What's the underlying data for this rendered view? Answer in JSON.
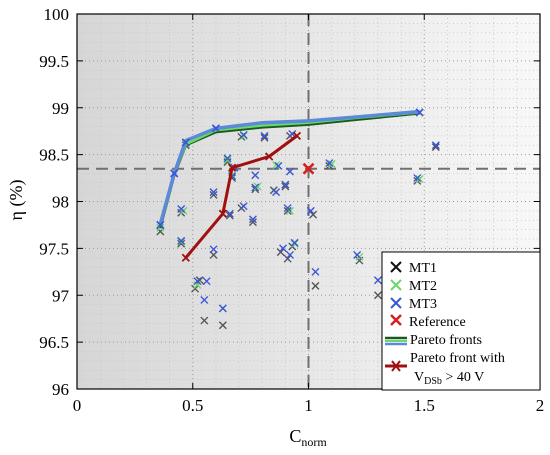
{
  "chart_data": {
    "type": "scatter",
    "xlabel": {
      "main": "C",
      "sub": "norm"
    },
    "ylabel": "η (%)",
    "xlim": [
      0,
      2
    ],
    "ylim": [
      96,
      100
    ],
    "xticks": [
      "0",
      "0.5",
      "1",
      "1.5",
      "2"
    ],
    "yticks": [
      "96",
      "96.5",
      "97",
      "97.5",
      "98",
      "98.5",
      "99",
      "99.5",
      "100"
    ],
    "grid": true,
    "reference_lines": {
      "x": 1.0,
      "y": 98.35
    },
    "colors": {
      "MT1": "#555555",
      "MT2": "#6ad86a",
      "MT3": "#3a55d8",
      "reference": "#d62020",
      "pareto_dark": "#1a5a1a",
      "pareto_light": "#5a8ad8",
      "pareto_vdsb": "#a01010"
    },
    "legend": {
      "position": "lower-right",
      "items": [
        {
          "key": "MT1",
          "label": "MT1"
        },
        {
          "key": "MT2",
          "label": "MT2"
        },
        {
          "key": "MT3",
          "label": "MT3"
        },
        {
          "key": "reference",
          "label": "Reference"
        },
        {
          "key": "pareto",
          "label": "Pareto fronts"
        },
        {
          "key": "pareto_vdsb",
          "label_line1": "Pareto front with",
          "label_v": "V",
          "label_sub": "DSb",
          "label_rest": " > 40 V"
        }
      ]
    },
    "series": [
      {
        "name": "MT1",
        "marker": "x",
        "points": [
          [
            0.36,
            97.68
          ],
          [
            0.45,
            97.88
          ],
          [
            0.45,
            97.55
          ],
          [
            0.47,
            98.6
          ],
          [
            0.51,
            97.07
          ],
          [
            0.53,
            97.16
          ],
          [
            0.55,
            96.73
          ],
          [
            0.59,
            97.43
          ],
          [
            0.59,
            98.07
          ],
          [
            0.63,
            96.68
          ],
          [
            0.65,
            98.42
          ],
          [
            0.66,
            97.85
          ],
          [
            0.67,
            98.25
          ],
          [
            0.71,
            98.69
          ],
          [
            0.71,
            97.93
          ],
          [
            0.76,
            97.78
          ],
          [
            0.77,
            98.13
          ],
          [
            0.81,
            98.68
          ],
          [
            0.85,
            98.12
          ],
          [
            0.88,
            97.46
          ],
          [
            0.9,
            98.16
          ],
          [
            0.91,
            97.39
          ],
          [
            0.91,
            97.9
          ],
          [
            0.92,
            98.7
          ],
          [
            0.93,
            97.52
          ],
          [
            1.02,
            97.86
          ],
          [
            1.03,
            97.1
          ],
          [
            1.09,
            98.38
          ],
          [
            1.22,
            97.37
          ],
          [
            1.3,
            97.0
          ],
          [
            1.47,
            98.22
          ],
          [
            1.55,
            98.58
          ]
        ]
      },
      {
        "name": "MT2",
        "marker": "x",
        "points": [
          [
            0.36,
            97.72
          ],
          [
            0.46,
            97.9
          ],
          [
            0.45,
            97.57
          ],
          [
            0.47,
            98.62
          ],
          [
            0.52,
            97.11
          ],
          [
            0.63,
            96.86
          ],
          [
            0.65,
            98.44
          ],
          [
            0.67,
            98.28
          ],
          [
            0.72,
            98.7
          ],
          [
            0.78,
            98.16
          ],
          [
            0.86,
            98.39
          ],
          [
            0.9,
            98.18
          ],
          [
            0.92,
            97.9
          ],
          [
            0.94,
            97.55
          ],
          [
            1.1,
            98.4
          ],
          [
            1.22,
            97.41
          ],
          [
            1.48,
            98.24
          ]
        ]
      },
      {
        "name": "MT3",
        "marker": "x",
        "points": [
          [
            0.36,
            97.75
          ],
          [
            0.42,
            98.3
          ],
          [
            0.45,
            97.58
          ],
          [
            0.45,
            97.92
          ],
          [
            0.47,
            98.63
          ],
          [
            0.52,
            97.15
          ],
          [
            0.55,
            96.95
          ],
          [
            0.56,
            97.15
          ],
          [
            0.59,
            97.49
          ],
          [
            0.59,
            98.1
          ],
          [
            0.6,
            98.78
          ],
          [
            0.63,
            96.86
          ],
          [
            0.65,
            98.46
          ],
          [
            0.66,
            97.87
          ],
          [
            0.67,
            98.27
          ],
          [
            0.68,
            98.36
          ],
          [
            0.72,
            98.71
          ],
          [
            0.72,
            97.95
          ],
          [
            0.76,
            97.81
          ],
          [
            0.77,
            98.15
          ],
          [
            0.77,
            98.28
          ],
          [
            0.81,
            98.7
          ],
          [
            0.83,
            98.48
          ],
          [
            0.86,
            98.1
          ],
          [
            0.87,
            98.38
          ],
          [
            0.89,
            97.5
          ],
          [
            0.9,
            98.18
          ],
          [
            0.91,
            97.93
          ],
          [
            0.92,
            98.32
          ],
          [
            0.92,
            97.43
          ],
          [
            0.93,
            98.72
          ],
          [
            0.94,
            97.56
          ],
          [
            1.01,
            97.9
          ],
          [
            1.03,
            97.25
          ],
          [
            1.09,
            98.41
          ],
          [
            1.21,
            97.43
          ],
          [
            1.3,
            97.16
          ],
          [
            1.47,
            98.25
          ],
          [
            1.48,
            98.95
          ],
          [
            1.55,
            98.6
          ]
        ]
      },
      {
        "name": "Reference",
        "marker": "x",
        "points": [
          [
            1.0,
            98.35
          ]
        ]
      },
      {
        "name": "Pareto fronts",
        "lines": [
          {
            "key": "pareto_dark",
            "points": [
              [
                0.36,
                97.72
              ],
              [
                0.42,
                98.28
              ],
              [
                0.47,
                98.6
              ],
              [
                0.6,
                98.74
              ],
              [
                0.8,
                98.79
              ],
              [
                1.0,
                98.82
              ],
              [
                1.2,
                98.87
              ],
              [
                1.48,
                98.94
              ]
            ]
          },
          {
            "key": "MT2",
            "points": [
              [
                0.36,
                97.74
              ],
              [
                0.42,
                98.29
              ],
              [
                0.47,
                98.61
              ],
              [
                0.6,
                98.76
              ],
              [
                0.8,
                98.81
              ],
              [
                1.0,
                98.84
              ],
              [
                1.2,
                98.89
              ],
              [
                1.48,
                98.95
              ]
            ]
          },
          {
            "key": "pareto_light",
            "points": [
              [
                0.36,
                97.76
              ],
              [
                0.42,
                98.3
              ],
              [
                0.47,
                98.65
              ],
              [
                0.6,
                98.78
              ],
              [
                0.8,
                98.84
              ],
              [
                1.0,
                98.86
              ],
              [
                1.2,
                98.9
              ],
              [
                1.48,
                98.96
              ]
            ]
          }
        ]
      },
      {
        "name": "Pareto front with VDSb > 40 V",
        "points": [
          [
            0.47,
            97.4
          ],
          [
            0.63,
            97.87
          ],
          [
            0.67,
            98.36
          ],
          [
            0.83,
            98.48
          ],
          [
            0.95,
            98.7
          ]
        ]
      }
    ]
  }
}
